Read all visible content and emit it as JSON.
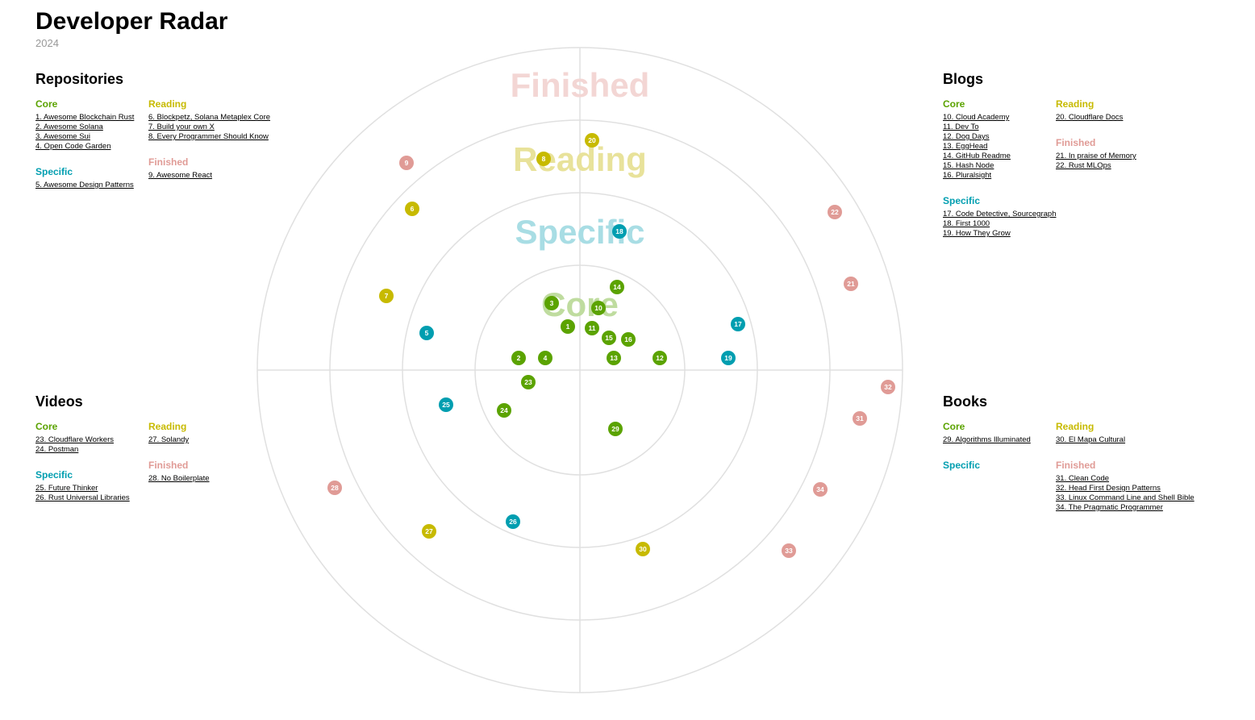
{
  "header": {
    "title": "Developer Radar",
    "subtitle": "2024"
  },
  "colors": {
    "Core": "#5ba300",
    "Specific": "#009eb0",
    "Reading": "#c7ba00",
    "Finished": "#e09b96",
    "grid": "#e0e0e0"
  },
  "ring_labels": [
    "Finished",
    "Reading",
    "Specific",
    "Core"
  ],
  "ring_label_colors": [
    "#f3d6d4",
    "#e8e29a",
    "#a8dde4",
    "#bfdc9f"
  ],
  "quadrants": {
    "repositories": {
      "title": "Repositories",
      "core": {
        "label": "Core",
        "items": [
          "1. Awesome Blockchain Rust",
          "2. Awesome Solana",
          "3. Awesome Sui",
          "4. Open Code Garden"
        ]
      },
      "specific": {
        "label": "Specific",
        "items": [
          "5. Awesome Design Patterns"
        ]
      },
      "reading": {
        "label": "Reading",
        "items": [
          "6. Blockpetz, Solana Metaplex Core",
          "7. Build your own X",
          "8. Every Programmer Should Know"
        ]
      },
      "finished": {
        "label": "Finished",
        "items": [
          "9. Awesome React"
        ]
      }
    },
    "blogs": {
      "title": "Blogs",
      "core": {
        "label": "Core",
        "items": [
          "10. Cloud Academy",
          "11. Dev To",
          "12. Dog Days",
          "13. EggHead",
          "14. GitHub Readme",
          "15. Hash Node",
          "16. Pluralsight"
        ]
      },
      "specific": {
        "label": "Specific",
        "items": [
          "17. Code Detective, Sourcegraph",
          "18. First 1000",
          "19. How They Grow"
        ]
      },
      "reading": {
        "label": "Reading",
        "items": [
          "20. Cloudflare Docs"
        ]
      },
      "finished": {
        "label": "Finished",
        "items": [
          "21. In praise of Memory",
          "22. Rust MLOps"
        ]
      }
    },
    "videos": {
      "title": "Videos",
      "core": {
        "label": "Core",
        "items": [
          "23. Cloudflare Workers",
          "24. Postman"
        ]
      },
      "specific": {
        "label": "Specific",
        "items": [
          "25. Future Thinker",
          "26. Rust Universal Libraries"
        ]
      },
      "reading": {
        "label": "Reading",
        "items": [
          "27. Solandy"
        ]
      },
      "finished": {
        "label": "Finished",
        "items": [
          "28. No Boilerplate"
        ]
      }
    },
    "books": {
      "title": "Books",
      "core": {
        "label": "Core",
        "items": [
          "29. Algorithms Illuminated"
        ]
      },
      "specific": {
        "label": "Specific",
        "items": []
      },
      "reading": {
        "label": "Reading",
        "items": [
          "30. El Mapa Cultural"
        ]
      },
      "finished": {
        "label": "Finished",
        "items": [
          "31. Clean Code",
          "32. Head First Design Patterns",
          "33. Linux Command Line and Shell Bible",
          "34. The Pragmatic Programmer"
        ]
      }
    }
  }
}
